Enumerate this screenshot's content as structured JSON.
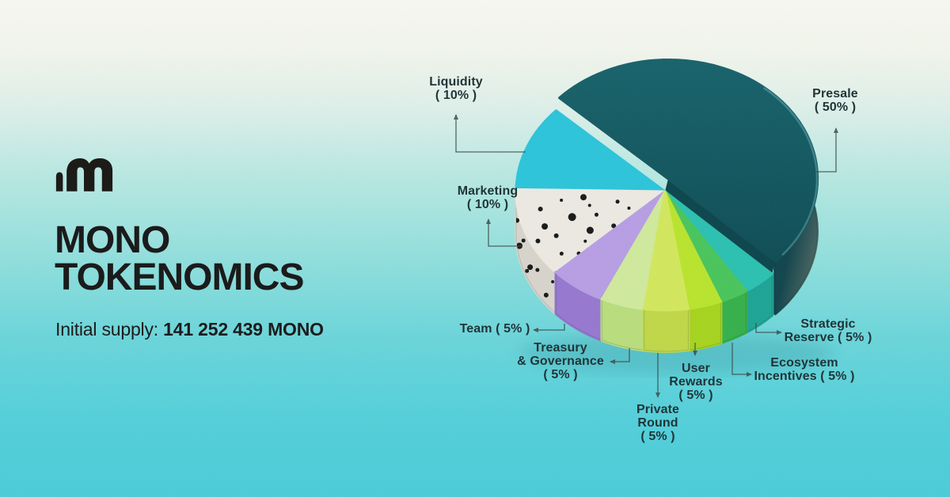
{
  "title": {
    "line1": "MONO",
    "line2": "TOKENOMICS"
  },
  "supply": {
    "label": "Initial supply:",
    "value": "141 252 439 MONO"
  },
  "chart_data": {
    "type": "pie",
    "unit": "%",
    "slices": [
      {
        "label": "Presale",
        "value": 50,
        "color": "#115a62",
        "side_color": "#0d4750"
      },
      {
        "label": "Liquidity",
        "value": 10,
        "color": "#2cc4da",
        "side_color": "#1fb0c8"
      },
      {
        "label": "Marketing",
        "value": 10,
        "color": "#ece9e2",
        "side_color": "#d8d4cc",
        "pattern": "black-speckle-dots"
      },
      {
        "label": "Team",
        "value": 5,
        "color": "#b79ee4",
        "side_color": "#9678cf"
      },
      {
        "label": "Treasury & Governance",
        "value": 5,
        "color": "#cfe99c",
        "side_color": "#b9dd7c"
      },
      {
        "label": "Private Round",
        "value": 5,
        "color": "#d2e75c",
        "side_color": "#c0d748"
      },
      {
        "label": "User Rewards",
        "value": 5,
        "color": "#b9e42d",
        "side_color": "#a6d31e"
      },
      {
        "label": "Ecosystem Incentives",
        "value": 5,
        "color": "#49c55c",
        "side_color": "#35b04b"
      },
      {
        "label": "Strategic Reserve",
        "value": 5,
        "color": "#2bc0b0",
        "side_color": "#1da494"
      }
    ],
    "legend_position": "callouts-around-pie",
    "style": "3d-extruded-pie, presale slice raised"
  },
  "callouts": [
    {
      "id": "liquidity",
      "lines": [
        "Liquidity",
        "( 10% )"
      ]
    },
    {
      "id": "presale",
      "lines": [
        "Presale",
        "( 50% )"
      ]
    },
    {
      "id": "marketing",
      "lines": [
        "Marketing",
        "( 10% )"
      ]
    },
    {
      "id": "team",
      "lines": [
        "Team ( 5% )"
      ]
    },
    {
      "id": "treasury",
      "lines": [
        "Treasury",
        "& Governance",
        "( 5% )"
      ]
    },
    {
      "id": "private",
      "lines": [
        "Private",
        "Round",
        "( 5% )"
      ]
    },
    {
      "id": "user",
      "lines": [
        "User",
        "Rewards",
        "( 5% )"
      ]
    },
    {
      "id": "ecosystem",
      "lines": [
        "Ecosystem",
        "Incentives ( 5% )"
      ]
    },
    {
      "id": "strategic",
      "lines": [
        "Strategic",
        "Reserve ( 5% )"
      ]
    }
  ]
}
